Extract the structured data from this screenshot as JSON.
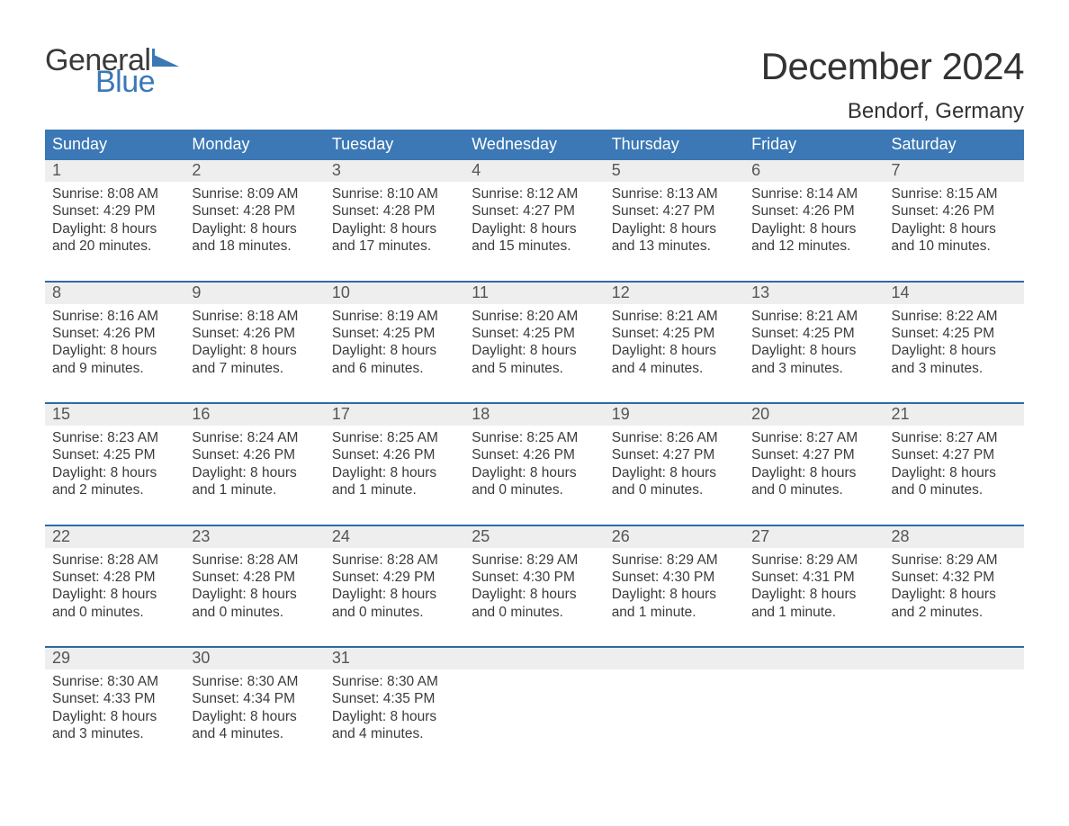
{
  "brand": {
    "word1": "General",
    "word2": "Blue"
  },
  "title": "December 2024",
  "location": "Bendorf, Germany",
  "colors": {
    "header_blue": "#3b78b5",
    "divider_blue": "#2f6aa6",
    "daynum_bg": "#eeeeee",
    "page_bg": "#ffffff",
    "text": "#3a3a3a"
  },
  "fonts": {
    "body_family": "Arial",
    "title_size_pt": 32,
    "location_size_pt": 18,
    "dow_size_pt": 14,
    "cell_size_pt": 12
  },
  "days_of_week": [
    "Sunday",
    "Monday",
    "Tuesday",
    "Wednesday",
    "Thursday",
    "Friday",
    "Saturday"
  ],
  "weeks": [
    [
      {
        "n": "1",
        "sunrise": "Sunrise: 8:08 AM",
        "sunset": "Sunset: 4:29 PM",
        "d1": "Daylight: 8 hours",
        "d2": "and 20 minutes."
      },
      {
        "n": "2",
        "sunrise": "Sunrise: 8:09 AM",
        "sunset": "Sunset: 4:28 PM",
        "d1": "Daylight: 8 hours",
        "d2": "and 18 minutes."
      },
      {
        "n": "3",
        "sunrise": "Sunrise: 8:10 AM",
        "sunset": "Sunset: 4:28 PM",
        "d1": "Daylight: 8 hours",
        "d2": "and 17 minutes."
      },
      {
        "n": "4",
        "sunrise": "Sunrise: 8:12 AM",
        "sunset": "Sunset: 4:27 PM",
        "d1": "Daylight: 8 hours",
        "d2": "and 15 minutes."
      },
      {
        "n": "5",
        "sunrise": "Sunrise: 8:13 AM",
        "sunset": "Sunset: 4:27 PM",
        "d1": "Daylight: 8 hours",
        "d2": "and 13 minutes."
      },
      {
        "n": "6",
        "sunrise": "Sunrise: 8:14 AM",
        "sunset": "Sunset: 4:26 PM",
        "d1": "Daylight: 8 hours",
        "d2": "and 12 minutes."
      },
      {
        "n": "7",
        "sunrise": "Sunrise: 8:15 AM",
        "sunset": "Sunset: 4:26 PM",
        "d1": "Daylight: 8 hours",
        "d2": "and 10 minutes."
      }
    ],
    [
      {
        "n": "8",
        "sunrise": "Sunrise: 8:16 AM",
        "sunset": "Sunset: 4:26 PM",
        "d1": "Daylight: 8 hours",
        "d2": "and 9 minutes."
      },
      {
        "n": "9",
        "sunrise": "Sunrise: 8:18 AM",
        "sunset": "Sunset: 4:26 PM",
        "d1": "Daylight: 8 hours",
        "d2": "and 7 minutes."
      },
      {
        "n": "10",
        "sunrise": "Sunrise: 8:19 AM",
        "sunset": "Sunset: 4:25 PM",
        "d1": "Daylight: 8 hours",
        "d2": "and 6 minutes."
      },
      {
        "n": "11",
        "sunrise": "Sunrise: 8:20 AM",
        "sunset": "Sunset: 4:25 PM",
        "d1": "Daylight: 8 hours",
        "d2": "and 5 minutes."
      },
      {
        "n": "12",
        "sunrise": "Sunrise: 8:21 AM",
        "sunset": "Sunset: 4:25 PM",
        "d1": "Daylight: 8 hours",
        "d2": "and 4 minutes."
      },
      {
        "n": "13",
        "sunrise": "Sunrise: 8:21 AM",
        "sunset": "Sunset: 4:25 PM",
        "d1": "Daylight: 8 hours",
        "d2": "and 3 minutes."
      },
      {
        "n": "14",
        "sunrise": "Sunrise: 8:22 AM",
        "sunset": "Sunset: 4:25 PM",
        "d1": "Daylight: 8 hours",
        "d2": "and 3 minutes."
      }
    ],
    [
      {
        "n": "15",
        "sunrise": "Sunrise: 8:23 AM",
        "sunset": "Sunset: 4:25 PM",
        "d1": "Daylight: 8 hours",
        "d2": "and 2 minutes."
      },
      {
        "n": "16",
        "sunrise": "Sunrise: 8:24 AM",
        "sunset": "Sunset: 4:26 PM",
        "d1": "Daylight: 8 hours",
        "d2": "and 1 minute."
      },
      {
        "n": "17",
        "sunrise": "Sunrise: 8:25 AM",
        "sunset": "Sunset: 4:26 PM",
        "d1": "Daylight: 8 hours",
        "d2": "and 1 minute."
      },
      {
        "n": "18",
        "sunrise": "Sunrise: 8:25 AM",
        "sunset": "Sunset: 4:26 PM",
        "d1": "Daylight: 8 hours",
        "d2": "and 0 minutes."
      },
      {
        "n": "19",
        "sunrise": "Sunrise: 8:26 AM",
        "sunset": "Sunset: 4:27 PM",
        "d1": "Daylight: 8 hours",
        "d2": "and 0 minutes."
      },
      {
        "n": "20",
        "sunrise": "Sunrise: 8:27 AM",
        "sunset": "Sunset: 4:27 PM",
        "d1": "Daylight: 8 hours",
        "d2": "and 0 minutes."
      },
      {
        "n": "21",
        "sunrise": "Sunrise: 8:27 AM",
        "sunset": "Sunset: 4:27 PM",
        "d1": "Daylight: 8 hours",
        "d2": "and 0 minutes."
      }
    ],
    [
      {
        "n": "22",
        "sunrise": "Sunrise: 8:28 AM",
        "sunset": "Sunset: 4:28 PM",
        "d1": "Daylight: 8 hours",
        "d2": "and 0 minutes."
      },
      {
        "n": "23",
        "sunrise": "Sunrise: 8:28 AM",
        "sunset": "Sunset: 4:28 PM",
        "d1": "Daylight: 8 hours",
        "d2": "and 0 minutes."
      },
      {
        "n": "24",
        "sunrise": "Sunrise: 8:28 AM",
        "sunset": "Sunset: 4:29 PM",
        "d1": "Daylight: 8 hours",
        "d2": "and 0 minutes."
      },
      {
        "n": "25",
        "sunrise": "Sunrise: 8:29 AM",
        "sunset": "Sunset: 4:30 PM",
        "d1": "Daylight: 8 hours",
        "d2": "and 0 minutes."
      },
      {
        "n": "26",
        "sunrise": "Sunrise: 8:29 AM",
        "sunset": "Sunset: 4:30 PM",
        "d1": "Daylight: 8 hours",
        "d2": "and 1 minute."
      },
      {
        "n": "27",
        "sunrise": "Sunrise: 8:29 AM",
        "sunset": "Sunset: 4:31 PM",
        "d1": "Daylight: 8 hours",
        "d2": "and 1 minute."
      },
      {
        "n": "28",
        "sunrise": "Sunrise: 8:29 AM",
        "sunset": "Sunset: 4:32 PM",
        "d1": "Daylight: 8 hours",
        "d2": "and 2 minutes."
      }
    ],
    [
      {
        "n": "29",
        "sunrise": "Sunrise: 8:30 AM",
        "sunset": "Sunset: 4:33 PM",
        "d1": "Daylight: 8 hours",
        "d2": "and 3 minutes."
      },
      {
        "n": "30",
        "sunrise": "Sunrise: 8:30 AM",
        "sunset": "Sunset: 4:34 PM",
        "d1": "Daylight: 8 hours",
        "d2": "and 4 minutes."
      },
      {
        "n": "31",
        "sunrise": "Sunrise: 8:30 AM",
        "sunset": "Sunset: 4:35 PM",
        "d1": "Daylight: 8 hours",
        "d2": "and 4 minutes."
      },
      {
        "n": "",
        "sunrise": "",
        "sunset": "",
        "d1": "",
        "d2": ""
      },
      {
        "n": "",
        "sunrise": "",
        "sunset": "",
        "d1": "",
        "d2": ""
      },
      {
        "n": "",
        "sunrise": "",
        "sunset": "",
        "d1": "",
        "d2": ""
      },
      {
        "n": "",
        "sunrise": "",
        "sunset": "",
        "d1": "",
        "d2": ""
      }
    ]
  ]
}
